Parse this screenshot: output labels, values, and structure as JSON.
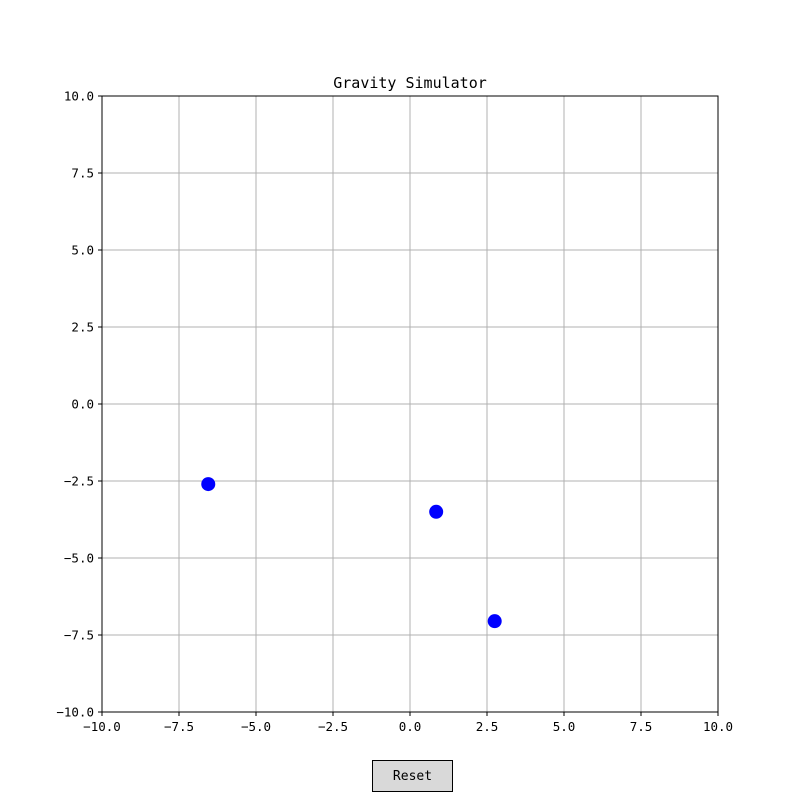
{
  "chart_data": {
    "type": "scatter",
    "title": "Gravity Simulator",
    "xlabel": "",
    "ylabel": "",
    "xlim": [
      -10.0,
      10.0
    ],
    "ylim": [
      -10.0,
      10.0
    ],
    "grid": true,
    "x_ticks": [
      "−10.0",
      "−7.5",
      "−5.0",
      "−2.5",
      "0.0",
      "2.5",
      "5.0",
      "7.5",
      "10.0"
    ],
    "y_ticks": [
      "10.0",
      "7.5",
      "5.0",
      "2.5",
      "0.0",
      "−2.5",
      "−5.0",
      "−7.5",
      "−10.0"
    ],
    "x_tick_values": [
      -10.0,
      -7.5,
      -5.0,
      -2.5,
      0.0,
      2.5,
      5.0,
      7.5,
      10.0
    ],
    "y_tick_values": [
      10.0,
      7.5,
      5.0,
      2.5,
      0.0,
      -2.5,
      -5.0,
      -7.5,
      -10.0
    ],
    "series": [
      {
        "color": "#0000ff",
        "points": [
          {
            "x": -6.55,
            "y": -2.6
          },
          {
            "x": 0.85,
            "y": -3.5
          },
          {
            "x": 2.75,
            "y": -7.05
          }
        ]
      }
    ]
  },
  "controls": {
    "reset_label": "Reset"
  }
}
